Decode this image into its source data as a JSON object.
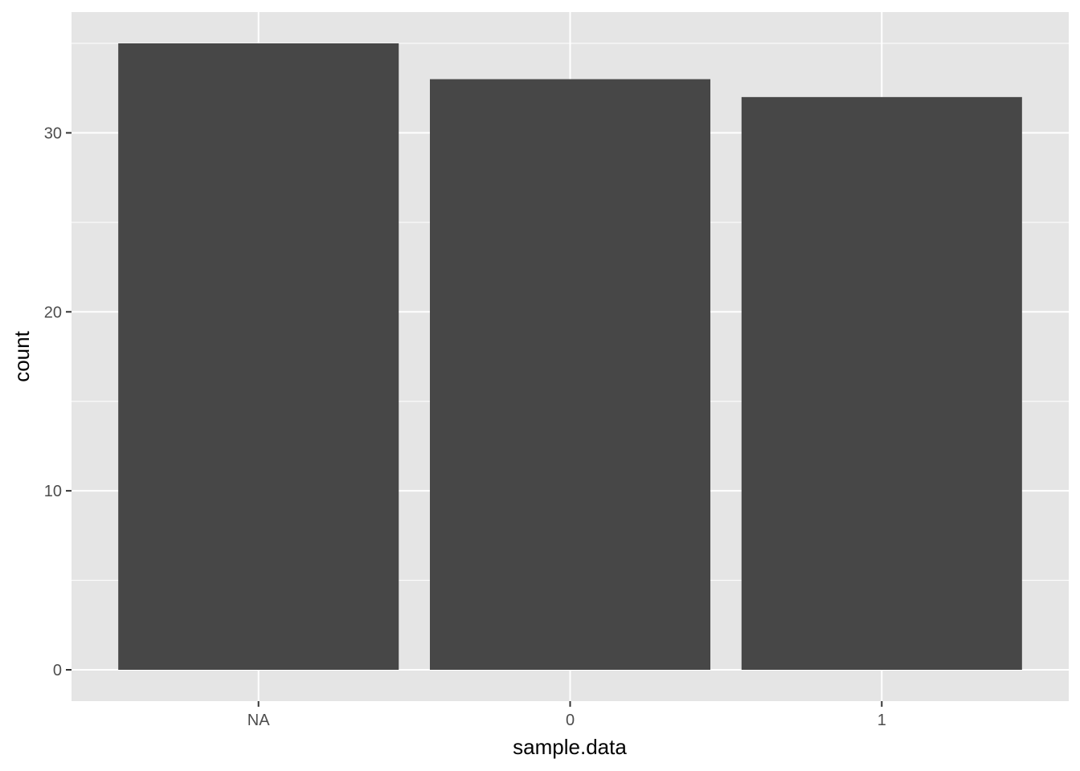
{
  "chart_data": {
    "type": "bar",
    "categories": [
      "NA",
      "0",
      "1"
    ],
    "values": [
      35,
      33,
      32
    ],
    "xlabel": "sample.data",
    "ylabel": "count",
    "ylim": [
      -1.75,
      36.75
    ],
    "yticks": [
      0,
      10,
      20,
      30
    ],
    "grid": true,
    "colors": {
      "panel": "#e5e5e5",
      "grid": "#ffffff",
      "bar": "#474747",
      "tick": "#333333"
    }
  }
}
